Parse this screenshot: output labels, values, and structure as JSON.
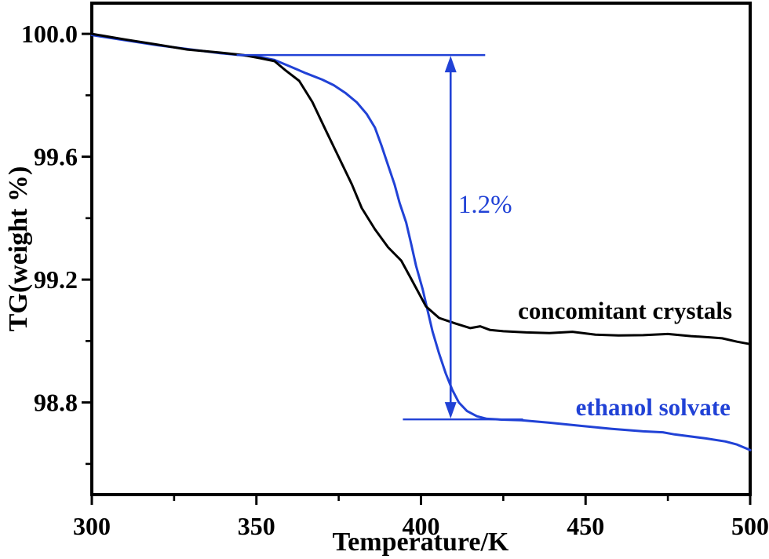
{
  "figure": {
    "background_color": "#ffffff",
    "frame_color": "#000000"
  },
  "chart_data": {
    "type": "line",
    "title": "",
    "xlabel": "Temperature/K",
    "ylabel": "TG(weight %)",
    "xlim": [
      300,
      500
    ],
    "ylim": [
      98.5,
      100.1
    ],
    "grid": false,
    "legend": "inline-labels",
    "x_major_ticks": [
      300,
      350,
      400,
      450,
      500
    ],
    "x_tick_labels": [
      "300",
      "350",
      "400",
      "450",
      "500"
    ],
    "x_minor_ticks": [
      325,
      375,
      425,
      475
    ],
    "y_major_ticks": [
      100.0,
      99.6,
      99.2,
      98.8
    ],
    "y_tick_labels": [
      "100.0",
      "99.6",
      "99.2",
      "98.8"
    ],
    "y_minor_ticks": [
      99.8,
      99.4,
      99.0,
      98.6
    ],
    "series": [
      {
        "name": "ethanol solvate",
        "color": "#2142d6",
        "x": [
          300,
          320,
          339,
          346,
          351,
          355.5,
          360,
          365,
          370,
          373.5,
          377,
          380.5,
          383.5,
          386,
          388,
          390,
          392,
          393.5,
          395.5,
          397,
          398.5,
          400.5,
          402,
          403.5,
          405.5,
          407.5,
          409.5,
          411.5,
          414,
          417,
          420,
          424.5,
          430.5,
          439,
          448.5,
          458,
          467.5,
          473.5,
          477,
          486.5,
          492.5,
          496,
          500
        ],
        "y": [
          99.996,
          99.963,
          99.937,
          99.93,
          99.925,
          99.915,
          99.895,
          99.872,
          99.851,
          99.833,
          99.808,
          99.777,
          99.739,
          99.695,
          99.636,
          99.572,
          99.509,
          99.45,
          99.386,
          99.317,
          99.245,
          99.169,
          99.1,
          99.031,
          98.959,
          98.895,
          98.841,
          98.8,
          98.772,
          98.755,
          98.747,
          98.744,
          98.742,
          98.734,
          98.724,
          98.714,
          98.706,
          98.703,
          98.696,
          98.683,
          98.673,
          98.663,
          98.645
        ]
      },
      {
        "name": "concomitant crystals",
        "color": "#000000",
        "x": [
          300,
          310,
          320,
          329,
          339,
          346,
          351,
          355.5,
          359,
          363,
          367,
          371,
          375,
          379,
          382,
          386,
          390,
          394,
          397,
          401.5,
          405.5,
          410.5,
          415,
          418,
          421,
          425,
          432,
          439,
          446,
          453,
          460,
          467.5,
          475,
          482,
          488,
          491.5,
          496,
          500
        ],
        "y": [
          100.0,
          99.982,
          99.965,
          99.949,
          99.939,
          99.931,
          99.921,
          99.911,
          99.88,
          99.847,
          99.778,
          99.688,
          99.599,
          99.51,
          99.433,
          99.364,
          99.305,
          99.262,
          99.203,
          99.113,
          99.075,
          99.057,
          99.042,
          99.048,
          99.036,
          99.032,
          99.028,
          99.026,
          99.03,
          99.021,
          99.018,
          99.019,
          99.023,
          99.016,
          99.012,
          99.009,
          98.998,
          98.99
        ]
      }
    ],
    "series_labels": [
      {
        "text": "concomitant crystals",
        "x": 462,
        "y": 99.073,
        "color": "#000000"
      },
      {
        "text": "ethanol solvate",
        "x": 470.5,
        "y": 98.758,
        "color": "#2142d6"
      }
    ],
    "annotations": {
      "ref_line_top": {
        "y": 99.931,
        "x_start": 344,
        "x_end": 419.5,
        "color": "#2142d6"
      },
      "ref_line_bottom": {
        "y": 98.745,
        "x_start": 394.5,
        "x_end": 431,
        "color": "#2142d6"
      },
      "arrow": {
        "x": 409,
        "y_top": 99.931,
        "y_bottom": 98.745,
        "style": "double-headed",
        "color": "#2142d6"
      },
      "delta_label": {
        "text": "1.2%",
        "x": 411.3,
        "y": 99.418,
        "color": "#2142d6"
      }
    }
  }
}
